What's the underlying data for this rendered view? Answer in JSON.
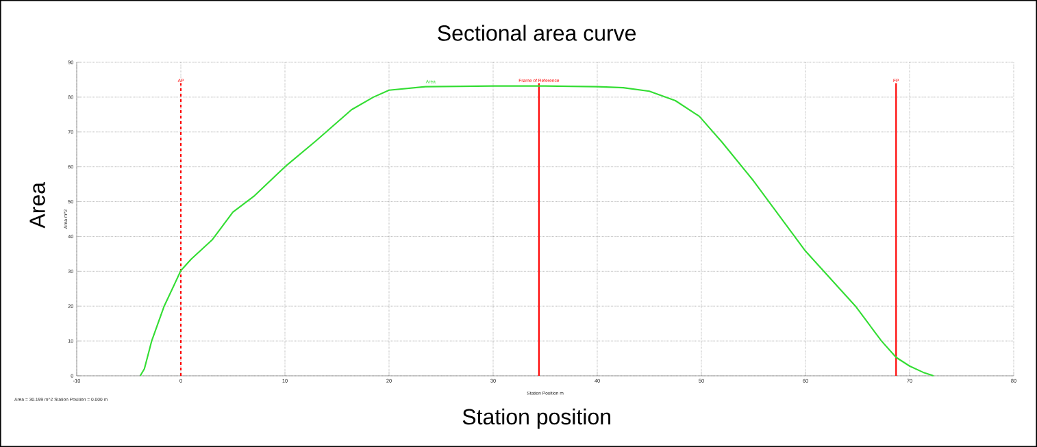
{
  "chart_data": {
    "type": "line",
    "title": "Sectional area curve",
    "xlabel": "Station position",
    "ylabel": "Area",
    "annotations": [
      "Area  m^2",
      "Station Position  m",
      "Area =  30.199 m^2     Station Position =  0.000 m"
    ],
    "series": [
      {
        "name": "Area",
        "color": "#33dd33",
        "x": [
          -3.9,
          -3.5,
          -2.8,
          -1.6,
          -0.5,
          0,
          1,
          3,
          5,
          7,
          10,
          13,
          16.4,
          18.5,
          20,
          23.5,
          30,
          35,
          40,
          42.5,
          45,
          47.5,
          49.8,
          52,
          55,
          60,
          64.8,
          67.3,
          68.7,
          70,
          71.3,
          72.3
        ],
        "values": [
          0,
          2,
          10,
          20,
          27,
          30.2,
          33.5,
          39,
          47,
          51.5,
          60,
          67.5,
          76.4,
          80,
          82,
          83,
          83.2,
          83.2,
          83,
          82.7,
          81.7,
          79,
          74.5,
          67,
          56,
          35.8,
          20,
          10,
          5.3,
          2.8,
          1,
          0
        ]
      }
    ],
    "xlim": [
      -10,
      80
    ],
    "ylim": [
      0,
      90
    ],
    "xticks": [
      -10,
      0,
      10,
      20,
      30,
      40,
      50,
      60,
      70,
      80
    ],
    "yticks": [
      0,
      10,
      20,
      30,
      40,
      50,
      60,
      70,
      80,
      90
    ],
    "grid": true,
    "ref_lines": [
      {
        "axis": "x",
        "value": 0,
        "label": "AP",
        "color": "#ff0000",
        "line_style": "dashed"
      },
      {
        "axis": "x",
        "value": 34.4,
        "label": "Frame of Reference",
        "color": "#ff0000"
      },
      {
        "axis": "x",
        "value": 68.7,
        "label": "FP",
        "color": "#ff0000"
      }
    ]
  }
}
